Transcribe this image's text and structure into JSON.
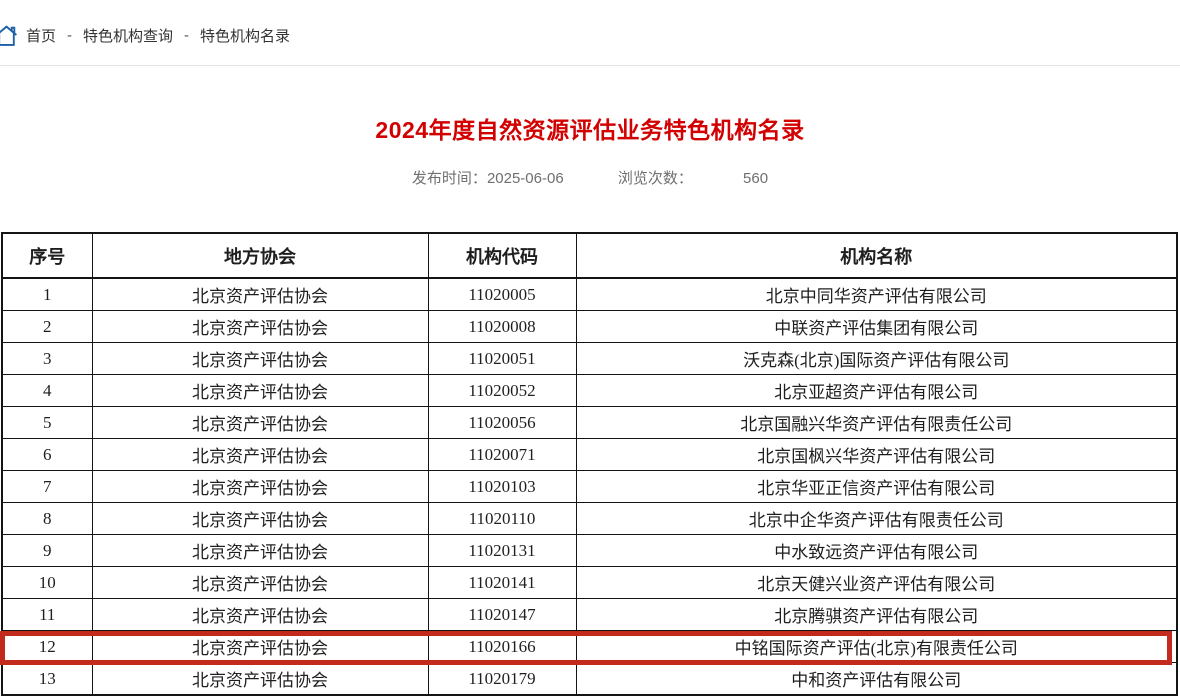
{
  "breadcrumb": {
    "items": [
      {
        "label": "首页"
      },
      {
        "label": "特色机构查询"
      },
      {
        "label": "特色机构名录"
      }
    ],
    "separator": "-"
  },
  "article": {
    "title": "2024年度自然资源评估业务特色机构名录",
    "publish_label": "发布时间：",
    "publish_date": "2025-06-06",
    "views_label": "浏览次数：",
    "views_count": "560"
  },
  "table": {
    "headers": [
      "序号",
      "地方协会",
      "机构代码",
      "机构名称"
    ],
    "rows": [
      [
        "1",
        "北京资产评估协会",
        "11020005",
        "北京中同华资产评估有限公司"
      ],
      [
        "2",
        "北京资产评估协会",
        "11020008",
        "中联资产评估集团有限公司"
      ],
      [
        "3",
        "北京资产评估协会",
        "11020051",
        "沃克森(北京)国际资产评估有限公司"
      ],
      [
        "4",
        "北京资产评估协会",
        "11020052",
        "北京亚超资产评估有限公司"
      ],
      [
        "5",
        "北京资产评估协会",
        "11020056",
        "北京国融兴华资产评估有限责任公司"
      ],
      [
        "6",
        "北京资产评估协会",
        "11020071",
        "北京国枫兴华资产评估有限公司"
      ],
      [
        "7",
        "北京资产评估协会",
        "11020103",
        "北京华亚正信资产评估有限公司"
      ],
      [
        "8",
        "北京资产评估协会",
        "11020110",
        "北京中企华资产评估有限责任公司"
      ],
      [
        "9",
        "北京资产评估协会",
        "11020131",
        "中水致远资产评估有限公司"
      ],
      [
        "10",
        "北京资产评估协会",
        "11020141",
        "北京天健兴业资产评估有限公司"
      ],
      [
        "11",
        "北京资产评估协会",
        "11020147",
        "北京腾骐资产评估有限公司"
      ],
      [
        "12",
        "北京资产评估协会",
        "11020166",
        "中铭国际资产评估(北京)有限责任公司"
      ],
      [
        "13",
        "北京资产评估协会",
        "11020179",
        "中和资产评估有限公司"
      ]
    ],
    "highlighted_row": "13"
  },
  "colors": {
    "title_red": "#d20000",
    "highlight_red": "#c12a1d",
    "home_icon_blue": "#1d5fa9"
  }
}
